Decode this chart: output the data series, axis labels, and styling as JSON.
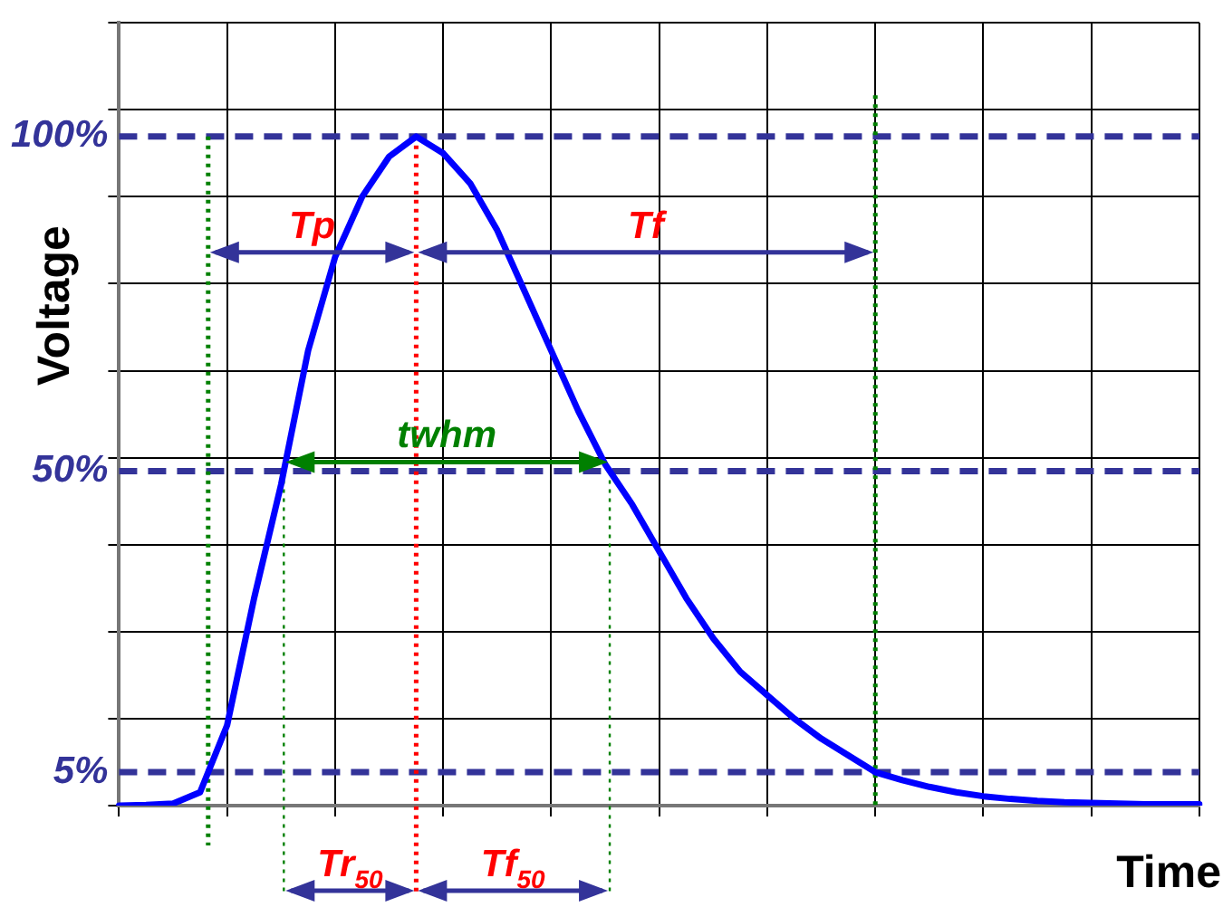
{
  "chart_data": {
    "type": "line",
    "xlabel": "Time",
    "ylabel": "Voltage",
    "categories": [
      null,
      null,
      null,
      null,
      null,
      null,
      null,
      null,
      null,
      null,
      null,
      null,
      null,
      null,
      null,
      null,
      null,
      null,
      null,
      null,
      null,
      null,
      null,
      null,
      null,
      null,
      null,
      null,
      null,
      null,
      null,
      null,
      null,
      null,
      null,
      null,
      null,
      null,
      null,
      null,
      null
    ],
    "series": [
      {
        "color": "#0000ff",
        "values": [
          0,
          0.1,
          0.3,
          2,
          12,
          31,
          48,
          68,
          82,
          91,
          97,
          100,
          97.5,
          93,
          86,
          77,
          68,
          59,
          51,
          45,
          38,
          31,
          25,
          20,
          16.5,
          13,
          10,
          7.5,
          5,
          3.8,
          2.8,
          2,
          1.4,
          1,
          0.7,
          0.5,
          0.4,
          0.3,
          0.2,
          0.2,
          0.2
        ]
      }
    ],
    "ylim": [
      0,
      117
    ],
    "yticks": [
      {
        "value": 0,
        "label": null
      },
      {
        "value": 5,
        "label": "5%"
      },
      {
        "value": 13,
        "label": null
      },
      {
        "value": 26,
        "label": null
      },
      {
        "value": 39,
        "label": null
      },
      {
        "value": 50,
        "label": "50%"
      },
      {
        "value": 52,
        "label": null
      },
      {
        "value": 65,
        "label": null
      },
      {
        "value": 78,
        "label": null
      },
      {
        "value": 91,
        "label": null
      },
      {
        "value": 100,
        "label": "100%"
      },
      {
        "value": 104,
        "label": null
      },
      {
        "value": 117,
        "label": null
      }
    ],
    "tick_labels": "y",
    "grid": true,
    "legend": false,
    "marker": "none",
    "line_style": "solid",
    "annotations": [
      "Tp",
      "Tf",
      "twhm",
      "Tr$_{50}$",
      "Tf$_{50}$"
    ]
  }
}
